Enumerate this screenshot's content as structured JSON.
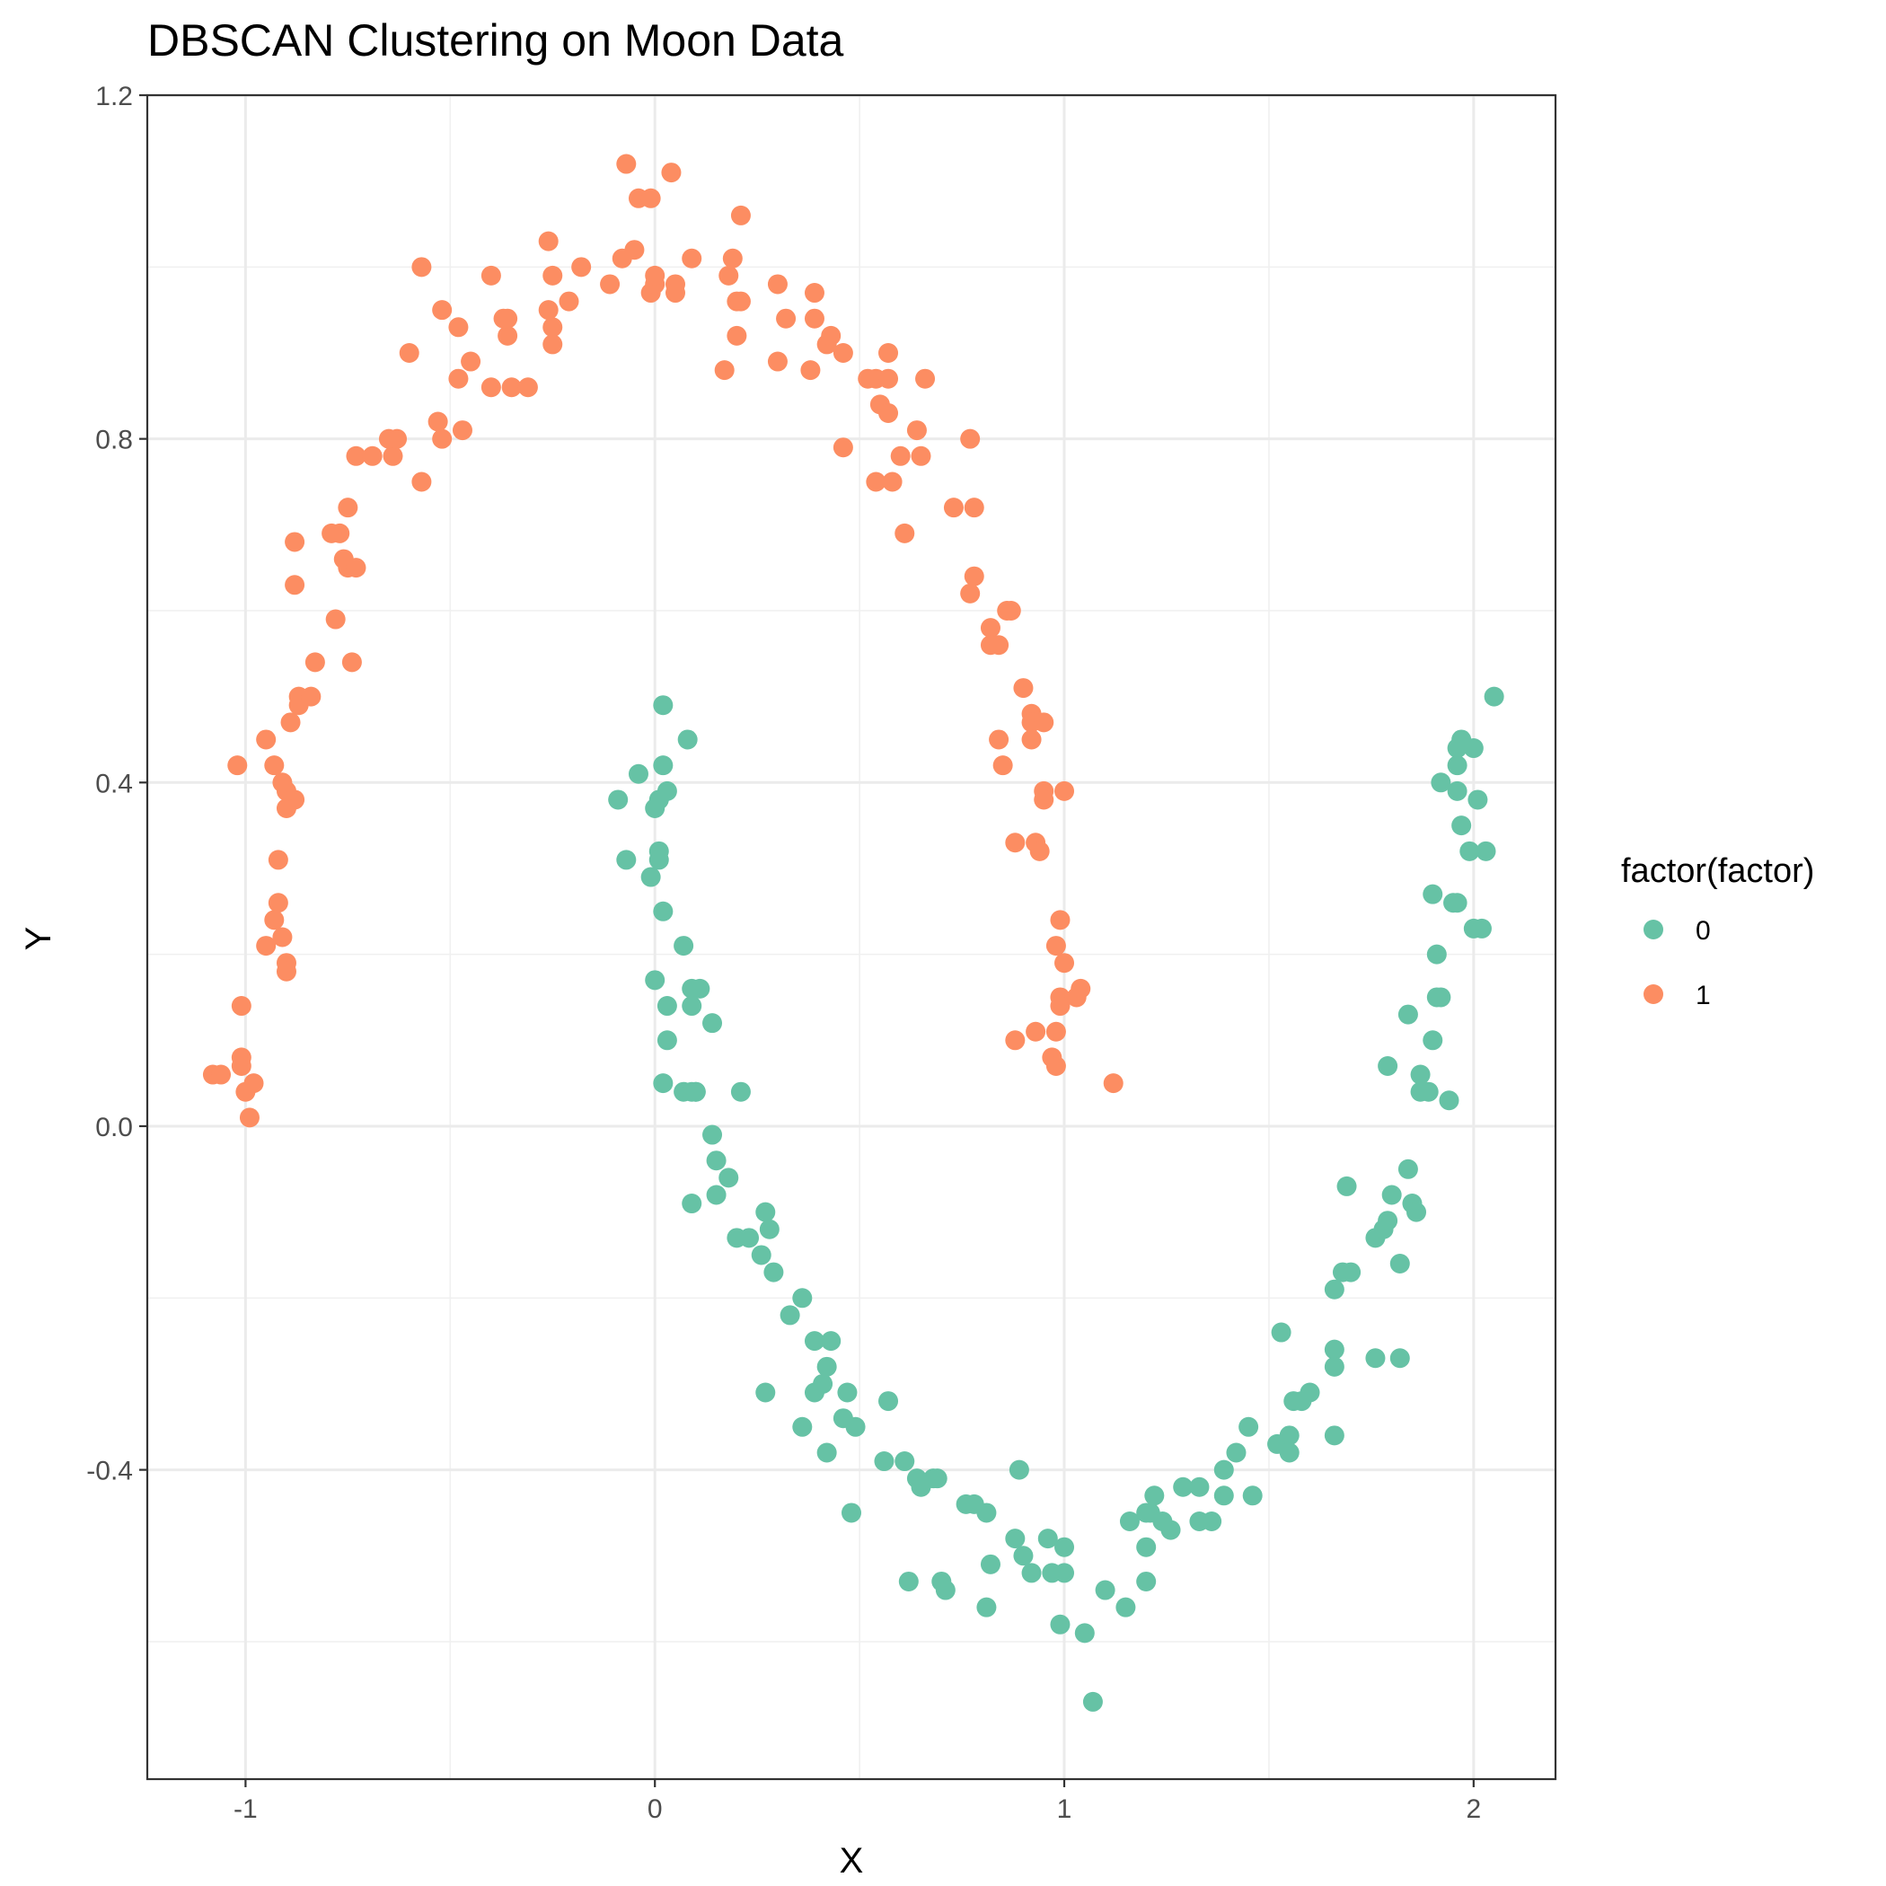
{
  "chart_data": {
    "type": "scatter",
    "title": "DBSCAN Clustering on Moon Data",
    "xlabel": "X",
    "ylabel": "Y",
    "xlim": [
      -1.24,
      2.2
    ],
    "ylim": [
      -0.76,
      1.2
    ],
    "x_ticks": [
      -1,
      0,
      1,
      2
    ],
    "y_ticks": [
      -0.4,
      0.0,
      0.4,
      0.8,
      1.2
    ],
    "x_tick_labels": [
      "-1",
      "0",
      "1",
      "2"
    ],
    "y_tick_labels": [
      "-0.4",
      "0.0",
      "0.4",
      "0.8",
      "1.2"
    ],
    "grid": true,
    "legend": {
      "title": "factor(factor)",
      "position": "right",
      "entries": [
        {
          "label": "0",
          "color": "#66C2A5"
        },
        {
          "label": "1",
          "color": "#FC8D62"
        }
      ]
    },
    "series": [
      {
        "name": "1",
        "color": "#FC8D62",
        "points": [
          [
            -1.08,
            0.06
          ],
          [
            -1.06,
            0.06
          ],
          [
            -1.01,
            0.08
          ],
          [
            -1.01,
            0.07
          ],
          [
            -1.0,
            0.04
          ],
          [
            -0.98,
            0.05
          ],
          [
            -0.99,
            0.01
          ],
          [
            -1.01,
            0.14
          ],
          [
            -0.95,
            0.21
          ],
          [
            -0.93,
            0.24
          ],
          [
            -0.92,
            0.26
          ],
          [
            -0.91,
            0.22
          ],
          [
            -0.9,
            0.19
          ],
          [
            -0.9,
            0.18
          ],
          [
            -0.92,
            0.31
          ],
          [
            -0.9,
            0.37
          ],
          [
            -0.88,
            0.38
          ],
          [
            -0.9,
            0.39
          ],
          [
            -0.91,
            0.4
          ],
          [
            -0.93,
            0.42
          ],
          [
            -0.95,
            0.45
          ],
          [
            -1.02,
            0.42
          ],
          [
            -0.89,
            0.47
          ],
          [
            -0.87,
            0.49
          ],
          [
            -0.87,
            0.5
          ],
          [
            -0.84,
            0.5
          ],
          [
            -0.83,
            0.54
          ],
          [
            -0.88,
            0.63
          ],
          [
            -0.88,
            0.68
          ],
          [
            -0.78,
            0.59
          ],
          [
            -0.74,
            0.54
          ],
          [
            -0.76,
            0.66
          ],
          [
            -0.75,
            0.65
          ],
          [
            -0.73,
            0.65
          ],
          [
            -0.77,
            0.69
          ],
          [
            -0.79,
            0.69
          ],
          [
            -0.75,
            0.72
          ],
          [
            -0.73,
            0.78
          ],
          [
            -0.69,
            0.78
          ],
          [
            -0.64,
            0.78
          ],
          [
            -0.65,
            0.8
          ],
          [
            -0.63,
            0.8
          ],
          [
            -0.57,
            0.75
          ],
          [
            -0.52,
            0.8
          ],
          [
            -0.53,
            0.82
          ],
          [
            -0.47,
            0.81
          ],
          [
            -0.48,
            0.87
          ],
          [
            -0.45,
            0.89
          ],
          [
            -0.6,
            0.9
          ],
          [
            -0.52,
            0.95
          ],
          [
            -0.48,
            0.93
          ],
          [
            -0.57,
            1.0
          ],
          [
            -0.4,
            0.86
          ],
          [
            -0.35,
            0.86
          ],
          [
            -0.31,
            0.86
          ],
          [
            -0.36,
            0.92
          ],
          [
            -0.37,
            0.94
          ],
          [
            -0.36,
            0.94
          ],
          [
            -0.4,
            0.99
          ],
          [
            -0.25,
            0.91
          ],
          [
            -0.25,
            0.93
          ],
          [
            -0.26,
            0.95
          ],
          [
            -0.21,
            0.96
          ],
          [
            -0.25,
            0.99
          ],
          [
            -0.26,
            1.03
          ],
          [
            -0.18,
            1.0
          ],
          [
            -0.11,
            0.98
          ],
          [
            -0.08,
            1.01
          ],
          [
            -0.05,
            1.02
          ],
          [
            -0.01,
            0.97
          ],
          [
            0.0,
            0.98
          ],
          [
            0.0,
            0.99
          ],
          [
            0.05,
            0.98
          ],
          [
            0.05,
            0.97
          ],
          [
            0.09,
            1.01
          ],
          [
            -0.07,
            1.12
          ],
          [
            -0.04,
            1.08
          ],
          [
            -0.01,
            1.08
          ],
          [
            0.04,
            1.11
          ],
          [
            0.17,
            0.88
          ],
          [
            0.2,
            0.96
          ],
          [
            0.21,
            0.96
          ],
          [
            0.2,
            0.92
          ],
          [
            0.18,
            0.99
          ],
          [
            0.19,
            1.01
          ],
          [
            0.21,
            1.06
          ],
          [
            0.3,
            0.89
          ],
          [
            0.32,
            0.94
          ],
          [
            0.3,
            0.98
          ],
          [
            0.38,
            0.88
          ],
          [
            0.39,
            0.94
          ],
          [
            0.39,
            0.97
          ],
          [
            0.42,
            0.91
          ],
          [
            0.43,
            0.92
          ],
          [
            0.46,
            0.9
          ],
          [
            0.46,
            0.79
          ],
          [
            0.52,
            0.87
          ],
          [
            0.54,
            0.87
          ],
          [
            0.55,
            0.84
          ],
          [
            0.57,
            0.83
          ],
          [
            0.57,
            0.87
          ],
          [
            0.57,
            0.9
          ],
          [
            0.58,
            0.75
          ],
          [
            0.54,
            0.75
          ],
          [
            0.6,
            0.78
          ],
          [
            0.61,
            0.69
          ],
          [
            0.65,
            0.78
          ],
          [
            0.64,
            0.81
          ],
          [
            0.66,
            0.87
          ],
          [
            0.73,
            0.72
          ],
          [
            0.77,
            0.8
          ],
          [
            0.78,
            0.72
          ],
          [
            0.77,
            0.62
          ],
          [
            0.78,
            0.64
          ],
          [
            0.82,
            0.58
          ],
          [
            0.82,
            0.56
          ],
          [
            0.84,
            0.56
          ],
          [
            0.86,
            0.6
          ],
          [
            0.87,
            0.6
          ],
          [
            0.84,
            0.45
          ],
          [
            0.85,
            0.42
          ],
          [
            0.9,
            0.51
          ],
          [
            0.92,
            0.48
          ],
          [
            0.92,
            0.47
          ],
          [
            0.95,
            0.47
          ],
          [
            0.92,
            0.45
          ],
          [
            0.95,
            0.39
          ],
          [
            0.95,
            0.38
          ],
          [
            1.0,
            0.39
          ],
          [
            0.88,
            0.33
          ],
          [
            0.93,
            0.33
          ],
          [
            0.94,
            0.32
          ],
          [
            0.99,
            0.24
          ],
          [
            0.98,
            0.21
          ],
          [
            1.0,
            0.19
          ],
          [
            0.99,
            0.15
          ],
          [
            1.03,
            0.15
          ],
          [
            1.04,
            0.16
          ],
          [
            0.99,
            0.14
          ],
          [
            0.93,
            0.11
          ],
          [
            0.98,
            0.11
          ],
          [
            0.88,
            0.1
          ],
          [
            0.97,
            0.08
          ],
          [
            0.98,
            0.07
          ],
          [
            1.12,
            0.05
          ]
        ]
      },
      {
        "name": "0",
        "color": "#66C2A5",
        "points": [
          [
            0.02,
            0.49
          ],
          [
            0.08,
            0.45
          ],
          [
            -0.04,
            0.41
          ],
          [
            0.02,
            0.42
          ],
          [
            -0.09,
            0.38
          ],
          [
            0.01,
            0.38
          ],
          [
            0.03,
            0.39
          ],
          [
            0.0,
            0.37
          ],
          [
            -0.07,
            0.31
          ],
          [
            0.01,
            0.32
          ],
          [
            0.01,
            0.31
          ],
          [
            -0.01,
            0.29
          ],
          [
            0.02,
            0.25
          ],
          [
            0.07,
            0.21
          ],
          [
            0.0,
            0.17
          ],
          [
            0.09,
            0.16
          ],
          [
            0.11,
            0.16
          ],
          [
            0.03,
            0.14
          ],
          [
            0.09,
            0.14
          ],
          [
            0.14,
            0.12
          ],
          [
            0.03,
            0.1
          ],
          [
            0.02,
            0.05
          ],
          [
            0.07,
            0.04
          ],
          [
            0.09,
            0.04
          ],
          [
            0.1,
            0.04
          ],
          [
            0.1,
            0.04
          ],
          [
            0.21,
            0.04
          ],
          [
            0.14,
            -0.01
          ],
          [
            0.15,
            -0.04
          ],
          [
            0.18,
            -0.06
          ],
          [
            0.09,
            -0.09
          ],
          [
            0.15,
            -0.08
          ],
          [
            0.27,
            -0.1
          ],
          [
            0.28,
            -0.12
          ],
          [
            0.2,
            -0.13
          ],
          [
            0.23,
            -0.13
          ],
          [
            0.26,
            -0.15
          ],
          [
            0.29,
            -0.17
          ],
          [
            0.36,
            -0.2
          ],
          [
            0.33,
            -0.22
          ],
          [
            0.39,
            -0.25
          ],
          [
            0.43,
            -0.25
          ],
          [
            0.42,
            -0.28
          ],
          [
            0.41,
            -0.3
          ],
          [
            0.39,
            -0.31
          ],
          [
            0.47,
            -0.31
          ],
          [
            0.27,
            -0.31
          ],
          [
            0.57,
            -0.32
          ],
          [
            0.46,
            -0.34
          ],
          [
            0.49,
            -0.35
          ],
          [
            0.36,
            -0.35
          ],
          [
            0.42,
            -0.38
          ],
          [
            0.56,
            -0.39
          ],
          [
            0.61,
            -0.39
          ],
          [
            0.64,
            -0.41
          ],
          [
            0.65,
            -0.42
          ],
          [
            0.68,
            -0.41
          ],
          [
            0.69,
            -0.41
          ],
          [
            0.48,
            -0.45
          ],
          [
            0.76,
            -0.44
          ],
          [
            0.78,
            -0.44
          ],
          [
            0.81,
            -0.45
          ],
          [
            0.89,
            -0.4
          ],
          [
            0.82,
            -0.51
          ],
          [
            0.88,
            -0.48
          ],
          [
            0.9,
            -0.5
          ],
          [
            0.92,
            -0.52
          ],
          [
            0.96,
            -0.48
          ],
          [
            0.97,
            -0.52
          ],
          [
            1.0,
            -0.49
          ],
          [
            1.0,
            -0.52
          ],
          [
            0.62,
            -0.53
          ],
          [
            0.7,
            -0.53
          ],
          [
            0.71,
            -0.54
          ],
          [
            0.81,
            -0.56
          ],
          [
            0.99,
            -0.58
          ],
          [
            1.05,
            -0.59
          ],
          [
            1.07,
            -0.67
          ],
          [
            1.1,
            -0.54
          ],
          [
            1.15,
            -0.56
          ],
          [
            1.16,
            -0.46
          ],
          [
            1.2,
            -0.45
          ],
          [
            1.21,
            -0.45
          ],
          [
            1.2,
            -0.49
          ],
          [
            1.2,
            -0.53
          ],
          [
            1.22,
            -0.43
          ],
          [
            1.24,
            -0.46
          ],
          [
            1.26,
            -0.47
          ],
          [
            1.29,
            -0.42
          ],
          [
            1.33,
            -0.42
          ],
          [
            1.33,
            -0.46
          ],
          [
            1.36,
            -0.46
          ],
          [
            1.39,
            -0.43
          ],
          [
            1.39,
            -0.4
          ],
          [
            1.42,
            -0.38
          ],
          [
            1.46,
            -0.43
          ],
          [
            1.45,
            -0.35
          ],
          [
            1.52,
            -0.37
          ],
          [
            1.55,
            -0.36
          ],
          [
            1.55,
            -0.38
          ],
          [
            1.56,
            -0.32
          ],
          [
            1.58,
            -0.32
          ],
          [
            1.6,
            -0.31
          ],
          [
            1.53,
            -0.24
          ],
          [
            1.66,
            -0.26
          ],
          [
            1.66,
            -0.28
          ],
          [
            1.66,
            -0.36
          ],
          [
            1.66,
            -0.19
          ],
          [
            1.68,
            -0.17
          ],
          [
            1.7,
            -0.17
          ],
          [
            1.69,
            -0.07
          ],
          [
            1.76,
            -0.13
          ],
          [
            1.78,
            -0.12
          ],
          [
            1.79,
            -0.11
          ],
          [
            1.8,
            -0.08
          ],
          [
            1.82,
            -0.16
          ],
          [
            1.84,
            -0.05
          ],
          [
            1.85,
            -0.09
          ],
          [
            1.86,
            -0.1
          ],
          [
            1.76,
            -0.27
          ],
          [
            1.82,
            -0.27
          ],
          [
            1.79,
            0.07
          ],
          [
            1.87,
            0.06
          ],
          [
            1.87,
            0.04
          ],
          [
            1.89,
            0.04
          ],
          [
            1.94,
            0.03
          ],
          [
            1.84,
            0.13
          ],
          [
            1.9,
            0.1
          ],
          [
            1.91,
            0.15
          ],
          [
            1.92,
            0.15
          ],
          [
            1.91,
            0.2
          ],
          [
            1.9,
            0.27
          ],
          [
            1.95,
            0.26
          ],
          [
            1.96,
            0.26
          ],
          [
            2.0,
            0.23
          ],
          [
            2.02,
            0.23
          ],
          [
            1.92,
            0.4
          ],
          [
            1.96,
            0.39
          ],
          [
            1.97,
            0.35
          ],
          [
            1.99,
            0.32
          ],
          [
            2.03,
            0.32
          ],
          [
            2.01,
            0.38
          ],
          [
            1.96,
            0.42
          ],
          [
            1.96,
            0.44
          ],
          [
            1.97,
            0.45
          ],
          [
            2.0,
            0.44
          ],
          [
            2.05,
            0.5
          ]
        ]
      }
    ]
  }
}
